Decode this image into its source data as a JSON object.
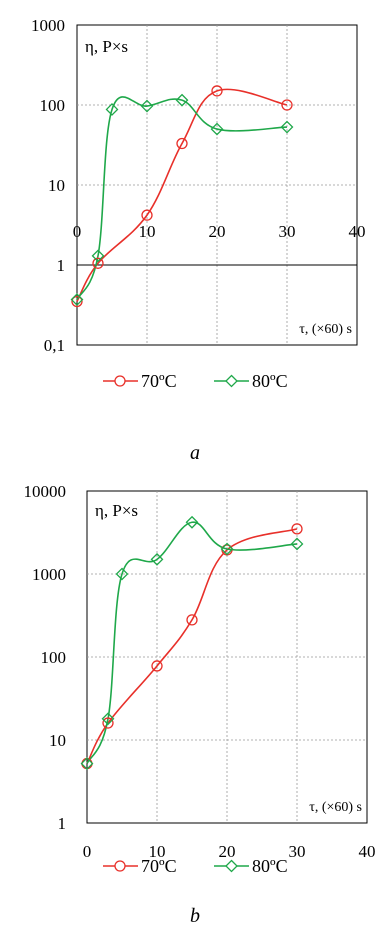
{
  "chart_data": [
    {
      "type": "line",
      "y_scale": "log",
      "ylim": [
        0.1,
        1000
      ],
      "xlim": [
        0,
        40
      ],
      "y_ticks": [
        "0,1",
        "1",
        "10",
        "100",
        "1000"
      ],
      "x_ticks": [
        "0",
        "10",
        "20",
        "30",
        "40"
      ],
      "x_axis_at_y": 1,
      "grid": true,
      "ylabel": "η, P×s",
      "xlabel": "τ, (×60) s",
      "legend_position": "bottom",
      "caption": "a",
      "series": [
        {
          "name": "70ºC",
          "color": "#e8302a",
          "marker": "circle",
          "x": [
            0,
            3,
            10,
            15,
            20,
            30
          ],
          "y": [
            0.35,
            1.05,
            4.2,
            33,
            150,
            100
          ]
        },
        {
          "name": "80ºC",
          "color": "#1fa84a",
          "marker": "diamond",
          "x": [
            0,
            3,
            5,
            10,
            15,
            20,
            30
          ],
          "y": [
            0.37,
            1.3,
            88,
            97,
            115,
            50,
            53
          ]
        }
      ]
    },
    {
      "type": "line",
      "y_scale": "log",
      "ylim": [
        1,
        10000
      ],
      "xlim": [
        0,
        40
      ],
      "y_ticks": [
        "1",
        "10",
        "100",
        "1000",
        "10000"
      ],
      "x_ticks": [
        "0",
        "10",
        "20",
        "30",
        "40"
      ],
      "x_axis_at_y": 1,
      "grid": true,
      "ylabel": "η, P×s",
      "xlabel": "τ, (×60) s",
      "legend_position": "bottom",
      "caption": "b",
      "series": [
        {
          "name": "70ºC",
          "color": "#e8302a",
          "marker": "circle",
          "x": [
            0,
            3,
            10,
            15,
            20,
            30
          ],
          "y": [
            5.2,
            16,
            78,
            280,
            1950,
            3500
          ]
        },
        {
          "name": "80ºC",
          "color": "#1fa84a",
          "marker": "diamond",
          "x": [
            0,
            3,
            5,
            10,
            15,
            20,
            30
          ],
          "y": [
            5.2,
            18,
            1000,
            1500,
            4200,
            2000,
            2300
          ]
        }
      ]
    }
  ]
}
